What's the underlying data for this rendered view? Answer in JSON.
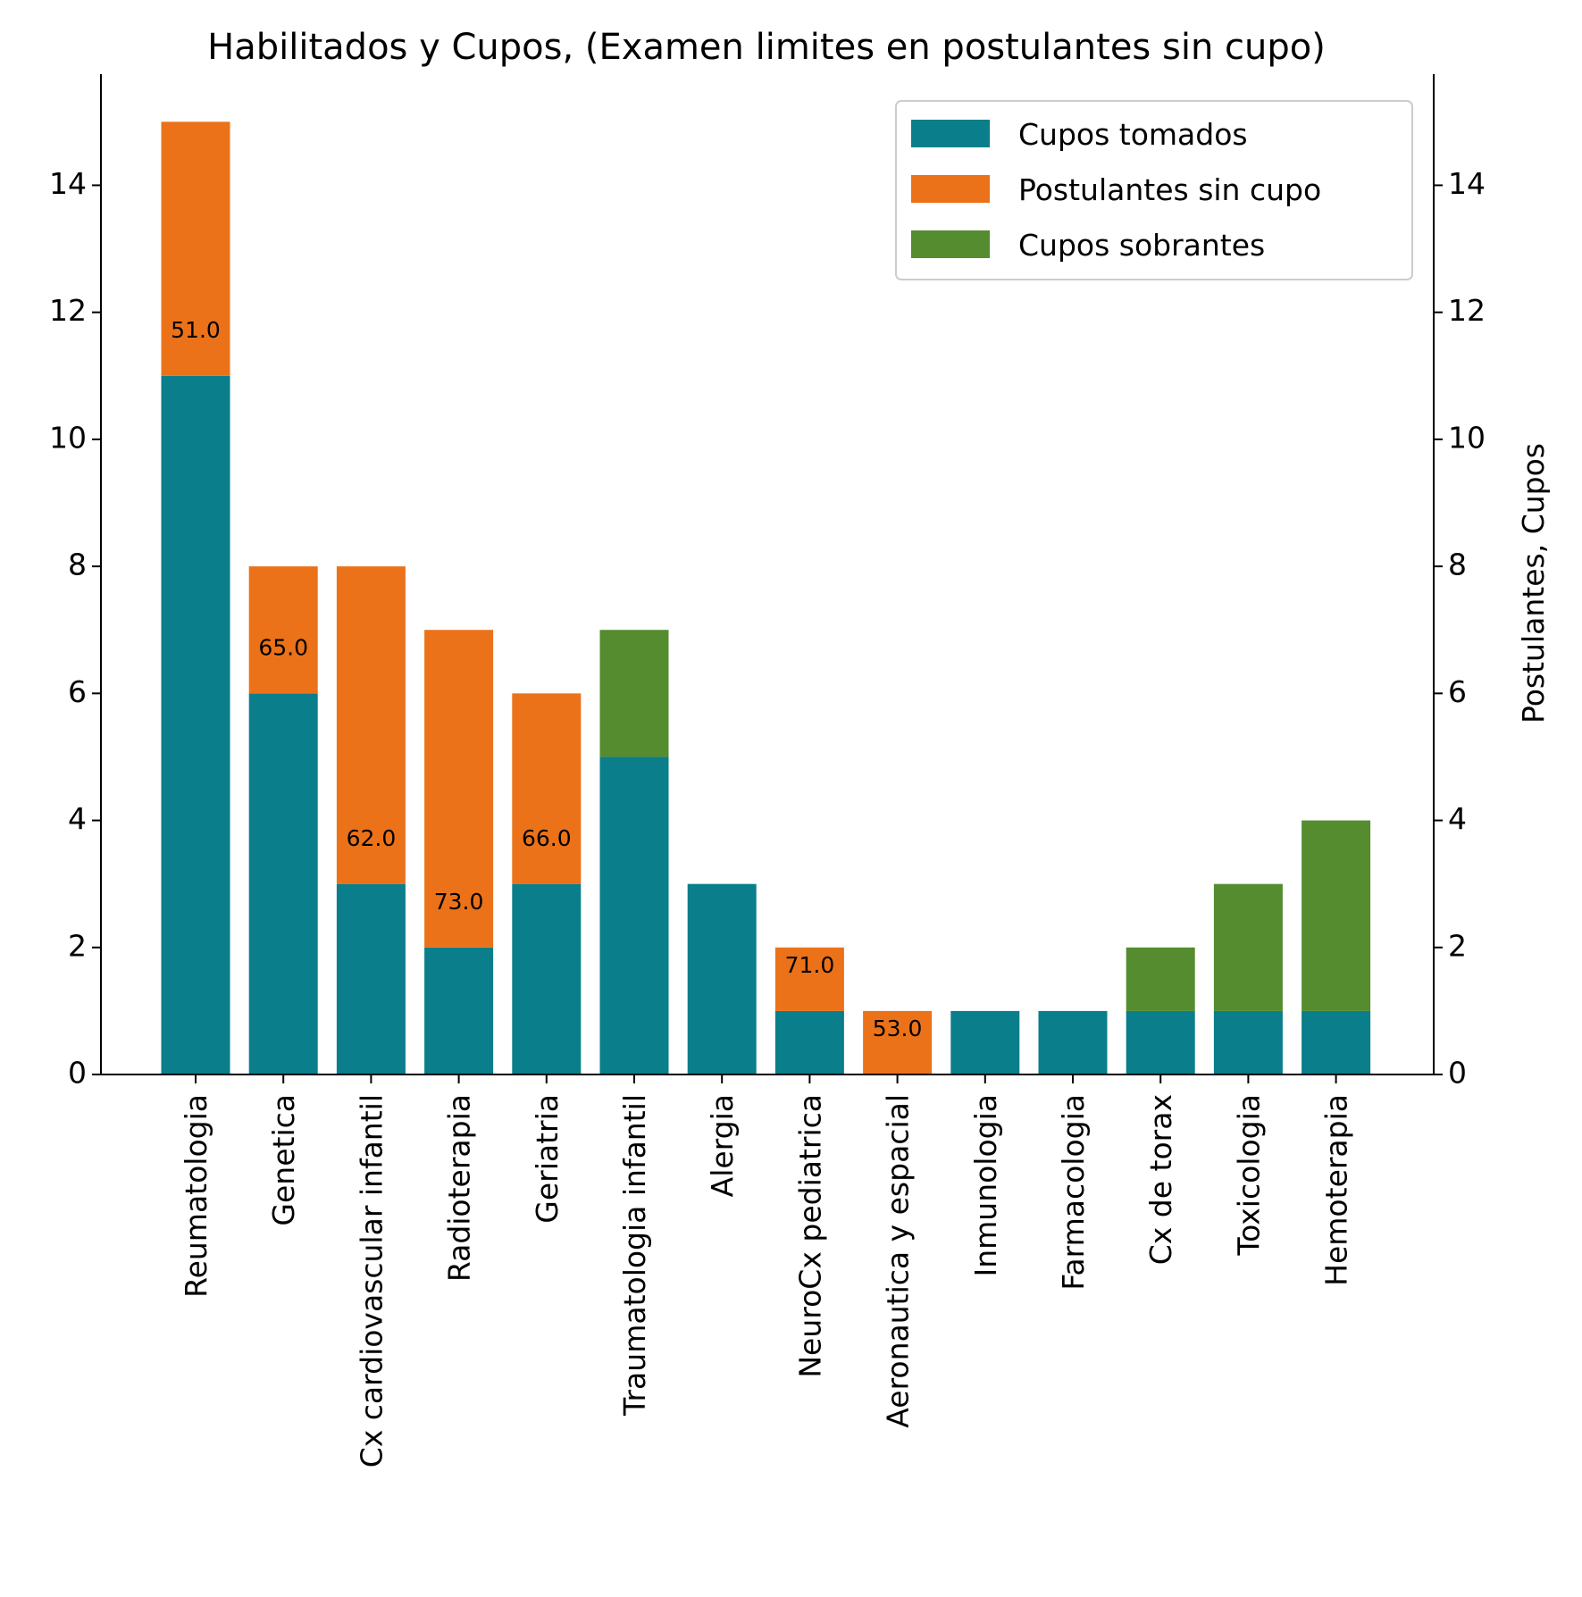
{
  "chart_data": {
    "type": "bar",
    "stacked": true,
    "title": "Habilitados y Cupos, (Examen limites en postulantes sin cupo)",
    "xlabel": "",
    "ylabel": "",
    "ylabel_right": "Postulantes, Cupos",
    "ylim": [
      0,
      15.75
    ],
    "yticks": [
      0,
      2,
      4,
      6,
      8,
      10,
      12,
      14
    ],
    "ytick_labels": [
      "0",
      "2",
      "4",
      "6",
      "8",
      "10",
      "12",
      "14"
    ],
    "grid": false,
    "legend_position": "top-right",
    "categories": [
      "Reumatologia",
      "Genetica",
      "Cx cardiovascular infantil",
      "Radioterapia",
      "Geriatria",
      "Traumatologia infantil",
      "Alergia",
      "NeuroCx pediatrica",
      "Aeronautica y espacial",
      "Inmunologia",
      "Farmacologia",
      "Cx de torax",
      "Toxicologia",
      "Hemoterapia"
    ],
    "series": [
      {
        "name": "Cupos tomados",
        "color": "#0a7e8a",
        "values": [
          11,
          6,
          3,
          2,
          3,
          5,
          3,
          1,
          0,
          1,
          1,
          1,
          1,
          1
        ]
      },
      {
        "name": "Postulantes sin cupo",
        "color": "#eb7219",
        "values": [
          4,
          2,
          5,
          5,
          3,
          0,
          0,
          1,
          1,
          0,
          0,
          0,
          0,
          0
        ]
      },
      {
        "name": "Cupos sobrantes",
        "color": "#548c2f",
        "values": [
          0,
          0,
          0,
          0,
          0,
          2,
          0,
          0,
          0,
          0,
          0,
          1,
          2,
          3
        ]
      }
    ],
    "annotations": [
      {
        "category": "Reumatologia",
        "text": "51.0",
        "y": 11.7
      },
      {
        "category": "Genetica",
        "text": "65.0",
        "y": 6.7
      },
      {
        "category": "Cx cardiovascular infantil",
        "text": "62.0",
        "y": 3.7
      },
      {
        "category": "Radioterapia",
        "text": "73.0",
        "y": 2.7
      },
      {
        "category": "Geriatria",
        "text": "66.0",
        "y": 3.7
      },
      {
        "category": "NeuroCx pediatrica",
        "text": "71.0",
        "y": 1.7
      },
      {
        "category": "Aeronautica y espacial",
        "text": "53.0",
        "y": 0.7
      }
    ]
  }
}
